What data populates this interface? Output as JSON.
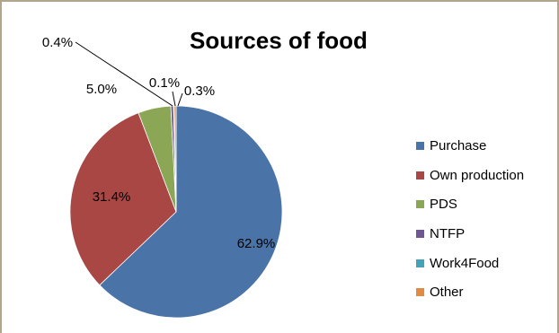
{
  "chart_data": {
    "type": "pie",
    "title": "Sources of food",
    "categories": [
      "Purchase",
      "Own production",
      "PDS",
      "NTFP",
      "Work4Food",
      "Other"
    ],
    "values": [
      62.9,
      31.4,
      5.0,
      0.4,
      0.1,
      0.3
    ],
    "labels": [
      "62.9%",
      "31.4%",
      "5.0%",
      "0.4%",
      "0.1%",
      "0.3%"
    ],
    "colors": [
      "#4a74a8",
      "#a84744",
      "#8ba654",
      "#6f5793",
      "#43a2b8",
      "#e08a44"
    ],
    "legend_position": "right"
  }
}
